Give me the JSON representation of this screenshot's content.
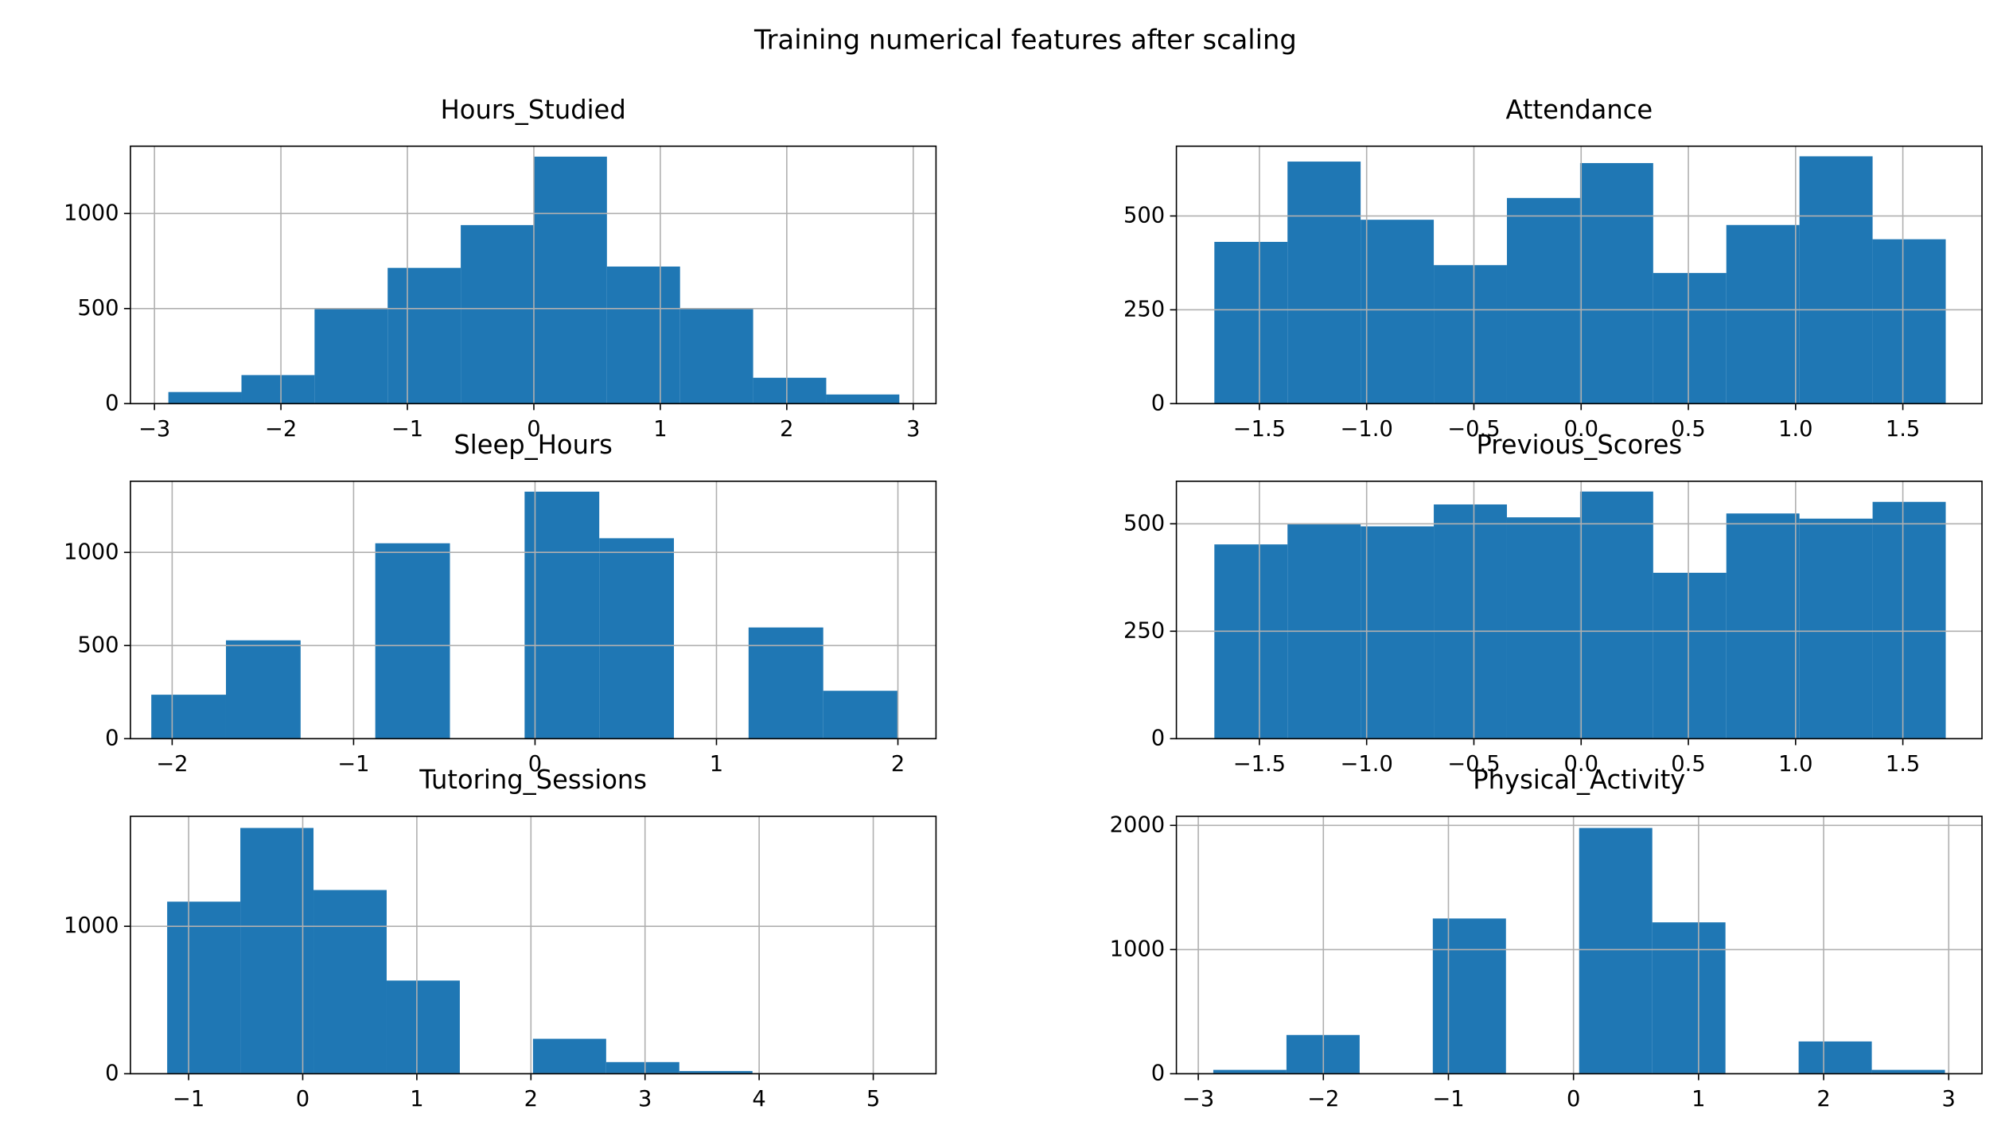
{
  "title": "Training numerical features after scaling",
  "chart_data": [
    {
      "type": "histogram",
      "title": "Hours_Studied",
      "color": "#1f77b4",
      "grid": true,
      "bins": [
        -2.89,
        -2.312,
        -1.734,
        -1.156,
        -0.578,
        0,
        0.578,
        1.156,
        1.734,
        2.312,
        2.89
      ],
      "counts": [
        61,
        150,
        503,
        714,
        939,
        1299,
        721,
        503,
        136,
        48
      ],
      "xlim": [
        -3.19,
        3.18
      ],
      "ylim": [
        0,
        1354
      ],
      "xticks": [
        {
          "value": -3,
          "label": "−3"
        },
        {
          "value": -2,
          "label": "−2"
        },
        {
          "value": -1,
          "label": "−1"
        },
        0,
        1,
        2,
        3
      ],
      "yticks": [
        0,
        500,
        1000
      ]
    },
    {
      "type": "histogram",
      "title": "Attendance",
      "color": "#1f77b4",
      "grid": true,
      "bins": [
        -1.71,
        -1.369,
        -1.028,
        -0.687,
        -0.346,
        -0.005,
        0.336,
        0.677,
        1.018,
        1.359,
        1.7
      ],
      "counts": [
        431,
        645,
        490,
        369,
        548,
        641,
        348,
        476,
        659,
        438
      ],
      "xlim": [
        -1.887,
        1.869
      ],
      "ylim": [
        0,
        686
      ],
      "xticks": [
        {
          "value": -1.5,
          "label": "−1.5"
        },
        {
          "value": -1,
          "label": "−1.0"
        },
        {
          "value": -0.5,
          "label": "−0.5"
        },
        {
          "value": 0,
          "label": "0.0"
        },
        0.5,
        {
          "value": 1,
          "label": "1.0"
        },
        1.5
      ],
      "yticks": [
        0,
        250,
        500
      ]
    },
    {
      "type": "histogram",
      "title": "Sleep_Hours",
      "color": "#1f77b4",
      "grid": true,
      "bins": [
        -2.115,
        -1.7035,
        -1.292,
        -0.8805,
        -0.469,
        -0.0575,
        0.354,
        0.7655,
        1.177,
        1.5885,
        2.0
      ],
      "counts": [
        236,
        528,
        0,
        1049,
        0,
        1326,
        1076,
        0,
        597,
        257
      ],
      "xlim": [
        -2.23,
        2.21
      ],
      "ylim": [
        0,
        1382
      ],
      "xticks": [
        {
          "value": -2,
          "label": "−2"
        },
        {
          "value": -1,
          "label": "−1"
        },
        0,
        1,
        2
      ],
      "yticks": [
        0,
        500,
        1000
      ]
    },
    {
      "type": "histogram",
      "title": "Previous_Scores",
      "color": "#1f77b4",
      "grid": true,
      "bins": [
        -1.71,
        -1.369,
        -1.028,
        -0.687,
        -0.346,
        -0.005,
        0.336,
        0.677,
        1.018,
        1.359,
        1.7
      ],
      "counts": [
        452,
        500,
        494,
        545,
        515,
        575,
        386,
        524,
        512,
        551
      ],
      "xlim": [
        -1.887,
        1.869
      ],
      "ylim": [
        0,
        599
      ],
      "xticks": [
        {
          "value": -1.5,
          "label": "−1.5"
        },
        {
          "value": -1,
          "label": "−1.0"
        },
        {
          "value": -0.5,
          "label": "−0.5"
        },
        {
          "value": 0,
          "label": "0.0"
        },
        0.5,
        {
          "value": 1,
          "label": "1.0"
        },
        1.5
      ],
      "yticks": [
        0,
        250,
        500
      ]
    },
    {
      "type": "histogram",
      "title": "Tutoring_Sessions",
      "color": "#1f77b4",
      "grid": true,
      "bins": [
        -1.188,
        -0.5468,
        0.0944,
        0.7356,
        1.3768,
        2.018,
        2.6592,
        3.3004,
        3.9416,
        4.5828,
        5.224
      ],
      "counts": [
        1167,
        1667,
        1246,
        632,
        0,
        237,
        79,
        18,
        0,
        3
      ],
      "xlim": [
        -1.51,
        5.55
      ],
      "ylim": [
        0,
        1746
      ],
      "xticks": [
        {
          "value": -1,
          "label": "−1"
        },
        0,
        1,
        2,
        3,
        4,
        5
      ],
      "yticks": [
        0,
        1000
      ]
    },
    {
      "type": "histogram",
      "title": "Physical_Activity",
      "color": "#1f77b4",
      "grid": true,
      "bins": [
        -2.88,
        -2.295,
        -1.71,
        -1.125,
        -0.54,
        0.045,
        0.63,
        1.215,
        1.8,
        2.385,
        2.97
      ],
      "counts": [
        31,
        312,
        0,
        1250,
        0,
        1979,
        1219,
        0,
        260,
        31
      ],
      "xlim": [
        -3.175,
        3.266
      ],
      "ylim": [
        0,
        2073
      ],
      "xticks": [
        {
          "value": -3,
          "label": "−3"
        },
        {
          "value": -2,
          "label": "−2"
        },
        {
          "value": -1,
          "label": "−1"
        },
        0,
        1,
        2,
        3
      ],
      "yticks": [
        0,
        1000,
        2000
      ]
    }
  ]
}
